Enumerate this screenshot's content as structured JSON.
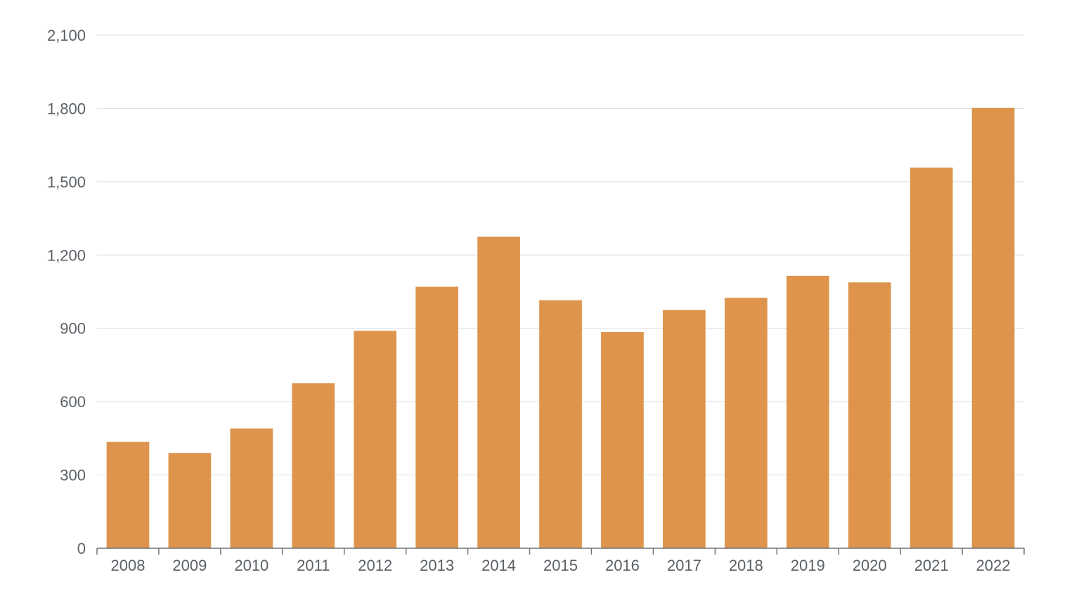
{
  "chart_data": {
    "type": "bar",
    "title": "",
    "xlabel": "",
    "ylabel": "",
    "categories": [
      "2008",
      "2009",
      "2010",
      "2011",
      "2012",
      "2013",
      "2014",
      "2015",
      "2016",
      "2017",
      "2018",
      "2019",
      "2020",
      "2021",
      "2022"
    ],
    "values": [
      435,
      390,
      490,
      675,
      890,
      1070,
      1275,
      1015,
      885,
      975,
      1025,
      1115,
      1088,
      1558,
      1802
    ],
    "ylim": [
      0,
      2100
    ],
    "yticks": [
      0,
      300,
      600,
      900,
      1200,
      1500,
      1800,
      2100
    ],
    "ytick_labels": [
      "0",
      "300",
      "600",
      "900",
      "1,200",
      "1,500",
      "1,800",
      "2,100"
    ],
    "grid": true,
    "legend": "none",
    "colors": {
      "bar": "#DE944C",
      "grid": "#E1E4E8",
      "axis": "#6F7479",
      "tick_text": "#5B6166"
    }
  }
}
